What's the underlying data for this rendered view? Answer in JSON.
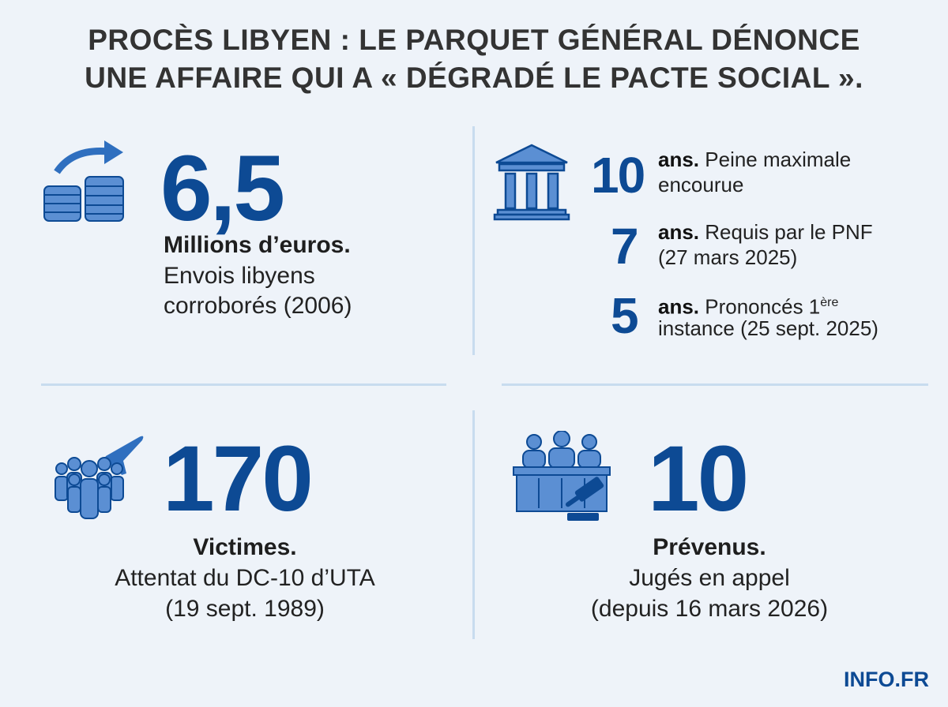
{
  "header": {
    "title_lines": [
      "PROCÈS LIBYEN : LE PARQUET GÉNÉRAL DÉNONCE",
      "UNE AFFAIRE QUI A « DÉGRADÉ LE PACTE SOCIAL »."
    ]
  },
  "panels": [
    {
      "number": "6,5",
      "label": "Millions d’euros.",
      "lines": [
        "Envois libyens",
        "corroborés (2006)"
      ]
    },
    {
      "items": [
        {
          "number": "10",
          "unit": "ans.",
          "lines": [
            "Peine maximale",
            "encourue"
          ]
        },
        {
          "number": "7",
          "unit": "ans.",
          "lines": [
            "Requis par le PNF",
            "(27 mars 2025)"
          ]
        },
        {
          "number": "5",
          "unit": "ans.",
          "lines": [
            "Prononcés 1",
            "instance (25 sept. 2025)"
          ],
          "superscript": "ère"
        }
      ]
    },
    {
      "number": "170",
      "label": "Victimes.",
      "lines": [
        "Attentat du DC-10 d’UTA",
        "(19 sept. 1989)"
      ]
    },
    {
      "number": "10",
      "label": "Prévenus.",
      "lines": [
        "Jugés en appel",
        "(depuis 16 mars 2026)"
      ]
    }
  ],
  "footer": {
    "brand": "INFO.FR"
  }
}
